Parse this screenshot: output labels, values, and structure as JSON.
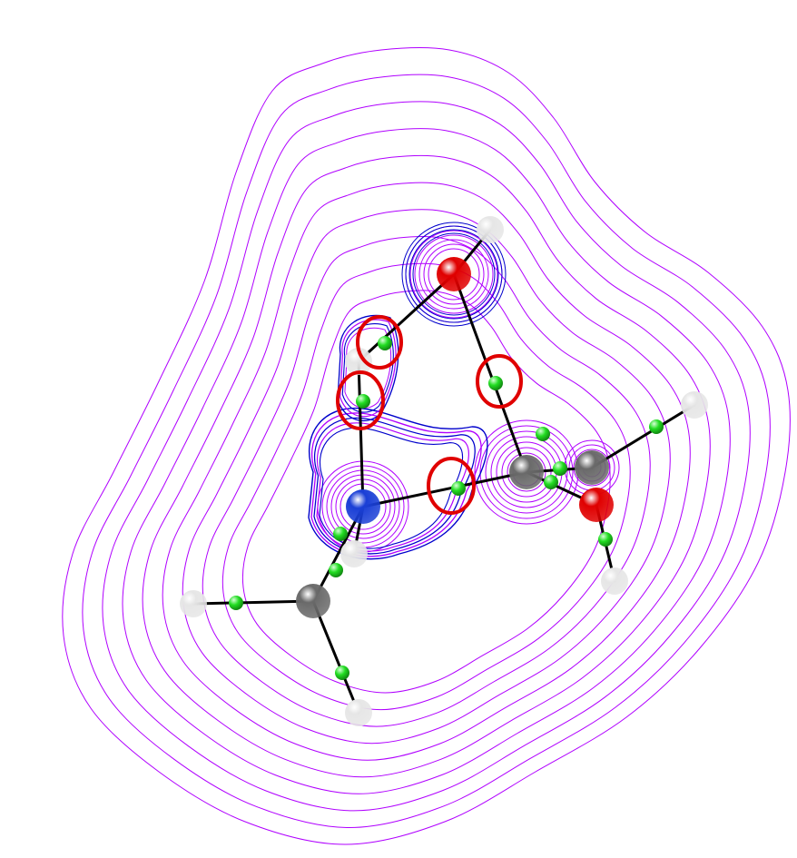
{
  "figure": {
    "description_free": true,
    "colors": {
      "outer_contour": "#b000ff",
      "inner_contour_blue": "#0000cc",
      "bond": "#000000",
      "bond_critical_point": "#22dd22",
      "highlight_circle": "#e00000",
      "oxygen": "#e00000",
      "nitrogen": "#1a3fd6",
      "carbon": "#6a6a6a",
      "hydrogen": "#e6e6e6"
    },
    "atoms": [
      {
        "id": "o1",
        "element": "oxygen"
      },
      {
        "id": "h1",
        "element": "hydrogen"
      },
      {
        "id": "h2",
        "element": "hydrogen"
      },
      {
        "id": "n1",
        "element": "nitrogen"
      },
      {
        "id": "h3",
        "element": "hydrogen"
      },
      {
        "id": "c1",
        "element": "carbon"
      },
      {
        "id": "h4",
        "element": "hydrogen"
      },
      {
        "id": "h5",
        "element": "hydrogen"
      },
      {
        "id": "c2",
        "element": "carbon"
      },
      {
        "id": "c3",
        "element": "carbon"
      },
      {
        "id": "o2",
        "element": "oxygen"
      },
      {
        "id": "h6",
        "element": "hydrogen"
      },
      {
        "id": "h7",
        "element": "hydrogen"
      }
    ],
    "highlighted_critical_points": 4
  }
}
